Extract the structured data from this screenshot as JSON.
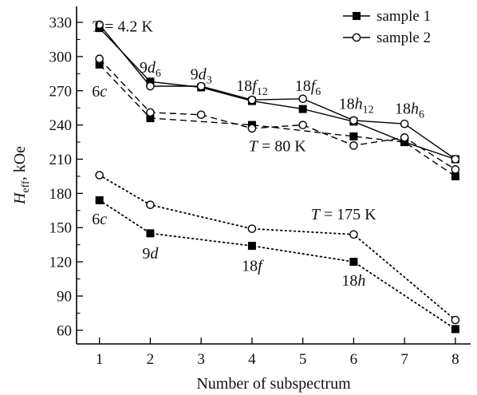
{
  "chart_data": {
    "type": "line",
    "title": "",
    "xlabel": "Number of subspectrum",
    "ylabel": {
      "main": "H",
      "sub": "eff",
      "rest": ", kOe"
    },
    "xlim": [
      0.55,
      8.3
    ],
    "ylim": [
      48,
      344
    ],
    "xticks": [
      1,
      2,
      3,
      4,
      5,
      6,
      7,
      8
    ],
    "yticks": [
      60,
      90,
      120,
      150,
      180,
      210,
      240,
      270,
      300,
      330
    ],
    "grid": false,
    "legend": {
      "position": "top-right",
      "entries": [
        {
          "label": "sample 1",
          "marker": "filled-square"
        },
        {
          "label": "sample 2",
          "marker": "open-circle"
        }
      ]
    },
    "series": [
      {
        "name": "sample 1",
        "group": "T = 4.2 K",
        "marker": "square",
        "line": "solid",
        "x": [
          1,
          2,
          3,
          4,
          5,
          6,
          7,
          8
        ],
        "y": [
          325,
          278,
          273,
          261,
          254,
          243,
          225,
          210
        ]
      },
      {
        "name": "sample 2",
        "group": "T = 4.2 K",
        "marker": "circle",
        "line": "solid",
        "x": [
          1,
          2,
          3,
          4,
          5,
          6,
          7,
          8
        ],
        "y": [
          328,
          274,
          274,
          262,
          263,
          244,
          241,
          210
        ]
      },
      {
        "name": "sample 1",
        "group": "T = 80 K",
        "marker": "square",
        "line": "dashed",
        "x": [
          1,
          2,
          4,
          6,
          7,
          8
        ],
        "y": [
          293,
          246,
          240,
          230,
          225,
          195
        ]
      },
      {
        "name": "sample 2",
        "group": "T = 80 K",
        "marker": "circle",
        "line": "dashed",
        "x": [
          1,
          2,
          3,
          4,
          5,
          6,
          7,
          8
        ],
        "y": [
          298,
          251,
          249,
          237,
          240,
          222,
          229,
          201
        ]
      },
      {
        "name": "sample 1",
        "group": "T = 175 K",
        "marker": "square",
        "line": "dotted",
        "x": [
          1,
          2,
          4,
          6,
          8
        ],
        "y": [
          174,
          145,
          134,
          120,
          61
        ]
      },
      {
        "name": "sample 2",
        "group": "T = 175 K",
        "marker": "circle",
        "line": "dotted",
        "x": [
          1,
          2,
          4,
          6,
          8
        ],
        "y": [
          196,
          170,
          149,
          144,
          69
        ]
      }
    ],
    "annotations": [
      {
        "parts": [
          {
            "t": "T",
            "i": true
          },
          {
            "t": " = 4.2 K"
          }
        ],
        "x": 1.45,
        "y": 322
      },
      {
        "parts": [
          {
            "t": "9"
          },
          {
            "t": "d",
            "i": true
          },
          {
            "t": "6",
            "sub": true
          }
        ],
        "x": 2.0,
        "y": 286
      },
      {
        "parts": [
          {
            "t": "9"
          },
          {
            "t": "d",
            "i": true
          },
          {
            "t": "3",
            "sub": true
          }
        ],
        "x": 3.0,
        "y": 280
      },
      {
        "parts": [
          {
            "t": "18"
          },
          {
            "t": "f",
            "i": true
          },
          {
            "t": "12",
            "sub": true
          }
        ],
        "x": 4.0,
        "y": 270
      },
      {
        "parts": [
          {
            "t": "18"
          },
          {
            "t": "f",
            "i": true
          },
          {
            "t": "6",
            "sub": true
          }
        ],
        "x": 5.1,
        "y": 270
      },
      {
        "parts": [
          {
            "t": "18"
          },
          {
            "t": "h",
            "i": true
          },
          {
            "t": "12",
            "sub": true
          }
        ],
        "x": 6.05,
        "y": 254
      },
      {
        "parts": [
          {
            "t": "18"
          },
          {
            "t": "h",
            "i": true
          },
          {
            "t": "6",
            "sub": true
          }
        ],
        "x": 7.1,
        "y": 250
      },
      {
        "parts": [
          {
            "t": "6"
          },
          {
            "t": "c",
            "i": true
          }
        ],
        "x": 1.0,
        "y": 265
      },
      {
        "parts": [
          {
            "t": "T",
            "i": true
          },
          {
            "t": " = 80 K"
          }
        ],
        "x": 4.5,
        "y": 217
      },
      {
        "parts": [
          {
            "t": "6"
          },
          {
            "t": "c",
            "i": true
          }
        ],
        "x": 1.0,
        "y": 153
      },
      {
        "parts": [
          {
            "t": "9"
          },
          {
            "t": "d",
            "i": true
          }
        ],
        "x": 2.0,
        "y": 123
      },
      {
        "parts": [
          {
            "t": "T",
            "i": true
          },
          {
            "t": " = 175 K"
          }
        ],
        "x": 5.8,
        "y": 157
      },
      {
        "parts": [
          {
            "t": "18"
          },
          {
            "t": "f",
            "i": true
          }
        ],
        "x": 4.0,
        "y": 112
      },
      {
        "parts": [
          {
            "t": "18"
          },
          {
            "t": "h",
            "i": true
          }
        ],
        "x": 6.0,
        "y": 99
      }
    ]
  }
}
